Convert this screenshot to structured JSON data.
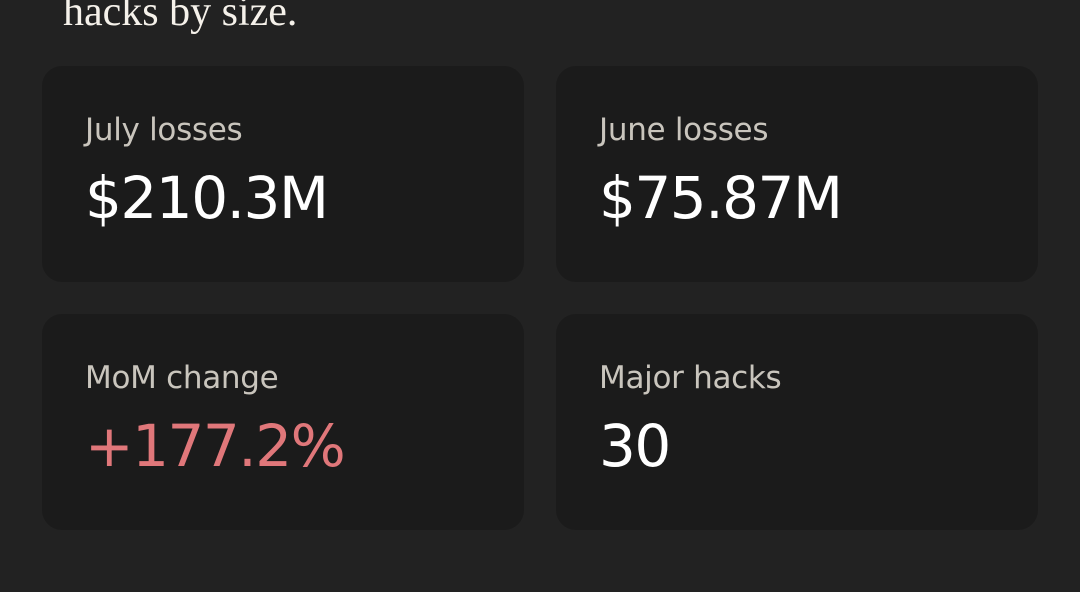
{
  "intro": {
    "text": "hacks by size."
  },
  "stats": {
    "july_losses": {
      "label": "July losses",
      "value": "$210.3M"
    },
    "june_losses": {
      "label": "June losses",
      "value": "$75.87M"
    },
    "mom_change": {
      "label": "MoM change",
      "value": "+177.2%",
      "value_color": "#e0777a"
    },
    "major_hacks": {
      "label": "Major hacks",
      "value": "30"
    }
  },
  "colors": {
    "background": "#222222",
    "card": "#1b1b1b",
    "label": "#c9c5bd",
    "value": "#ffffff",
    "increase": "#e0777a"
  }
}
